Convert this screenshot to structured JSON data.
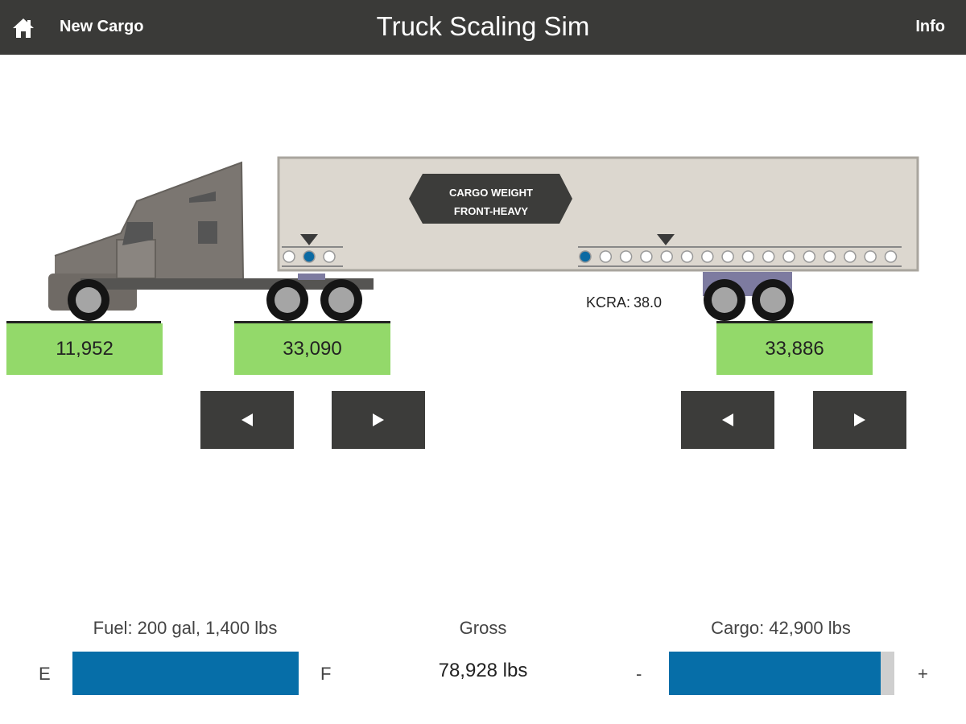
{
  "header": {
    "title": "Truck Scaling Sim",
    "new_cargo_label": "New Cargo",
    "info_label": "Info",
    "bar_color": "#3a3a38"
  },
  "cargo_badge": {
    "line1": "CARGO WEIGHT",
    "line2": "FRONT-HEAVY"
  },
  "kcra": {
    "label": "KCRA:",
    "value": "38.0"
  },
  "scales": {
    "steer": "11,952",
    "drive": "33,090",
    "trailer": "33,886",
    "ok_color": "#93d96a"
  },
  "controls": {
    "drive_left_symbol": "◀",
    "drive_right_symbol": "▶",
    "trailer_left_symbol": "◀",
    "trailer_right_symbol": "▶"
  },
  "fifth_wheel": {
    "positions": 3,
    "selected_index": 1
  },
  "trailer_tandem": {
    "positions": 16,
    "selected_index": 0,
    "marker_index": 4
  },
  "fuel": {
    "label": "Fuel: 200 gal, 1,400 lbs",
    "empty_label": "E",
    "full_label": "F",
    "level": 1.0
  },
  "gross": {
    "label": "Gross",
    "value": "78,928 lbs"
  },
  "cargo": {
    "label": "Cargo: 42,900 lbs",
    "minus_label": "-",
    "plus_label": "+",
    "level": 0.94,
    "fill_color": "#066ea8"
  }
}
